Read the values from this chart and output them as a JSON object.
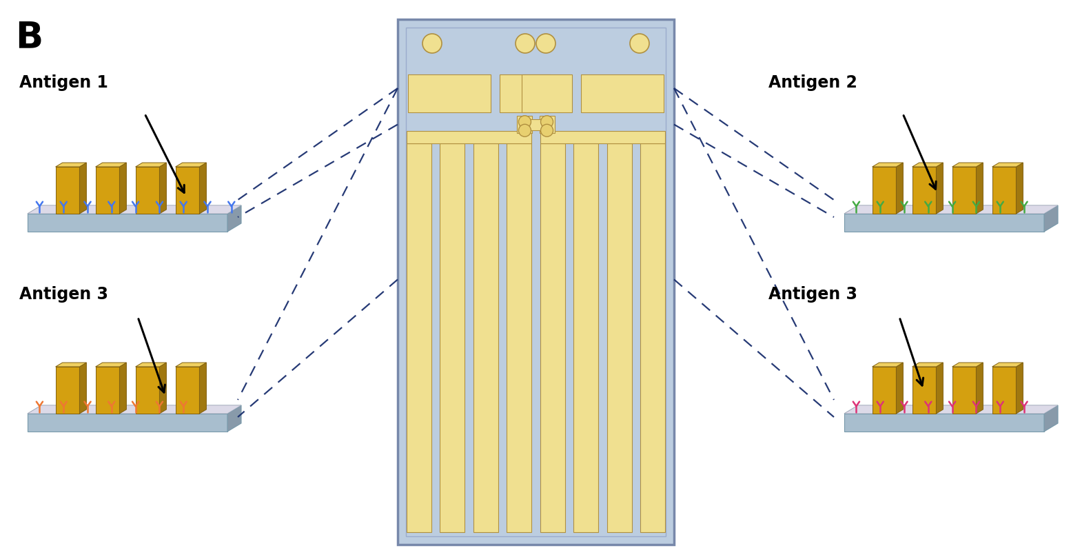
{
  "bg_color": "#ffffff",
  "label_B": "B",
  "chip_bg": "#b8c8df",
  "chip_border": "#8899bb",
  "electrode_color": "#f0e090",
  "electrode_border": "#c8b840",
  "dashed_line_color": "#1a2f6e",
  "ab_colors": {
    "ag1": "#4477ee",
    "ag2": "#44aa44",
    "ag3_left": "#ee7733",
    "ag3_right": "#dd3377"
  },
  "antigen_labels": {
    "ag1": "Antigen 1",
    "ag2": "Antigen 2",
    "ag3_left": "Antigen 3",
    "ag3_right": "Antigen 3"
  }
}
